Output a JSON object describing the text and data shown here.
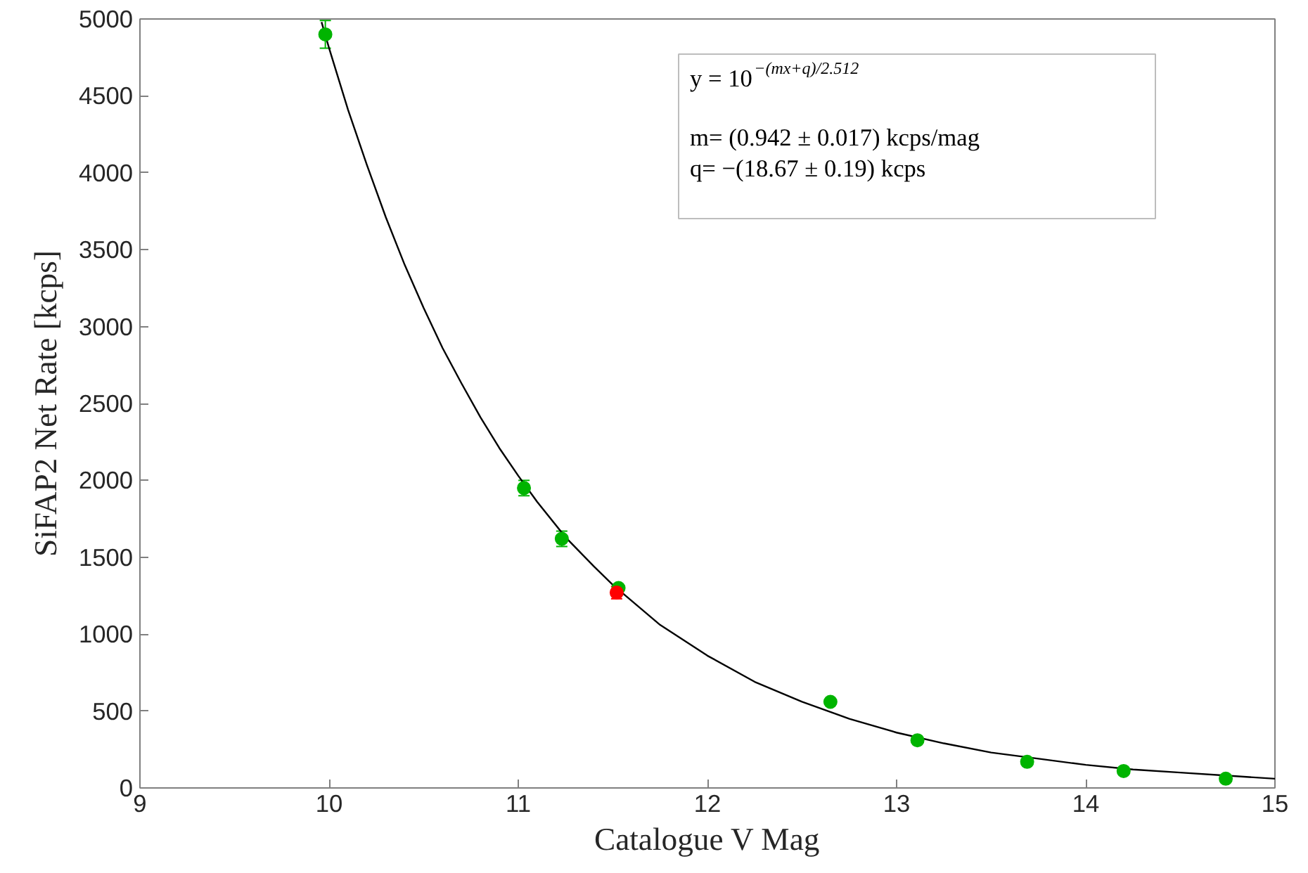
{
  "chart_data": {
    "type": "scatter",
    "xlabel": "Catalogue V Mag",
    "ylabel": "SiFAP2 Net Rate [kcps]",
    "xlim": [
      9,
      15
    ],
    "ylim": [
      0,
      5000
    ],
    "xticks": [
      9,
      10,
      11,
      12,
      13,
      14,
      15
    ],
    "yticks": [
      0,
      500,
      1000,
      1500,
      2000,
      2500,
      3000,
      3500,
      4000,
      4500,
      5000
    ],
    "grid": false,
    "series": [
      {
        "type": "line",
        "color": "#000000",
        "line_style": "solid",
        "x": [
          9.96,
          10,
          10.1,
          10.2,
          10.3,
          10.4,
          10.5,
          10.6,
          10.7,
          10.8,
          10.9,
          11,
          11.1,
          11.25,
          11.4,
          11.5,
          11.75,
          12,
          12.25,
          12.5,
          12.75,
          13,
          13.25,
          13.5,
          13.75,
          14,
          14.25,
          14.5,
          14.75,
          15
        ],
        "values": [
          4980,
          4810,
          4410,
          4050,
          3710,
          3400,
          3120,
          2860,
          2630,
          2410,
          2210,
          2030,
          1860,
          1630,
          1440,
          1320,
          1060,
          860,
          690,
          560,
          450,
          360,
          290,
          230,
          190,
          150,
          120,
          100,
          80,
          60
        ]
      },
      {
        "color": "#00b400",
        "marker": "circle",
        "x": [
          9.98,
          11.03,
          11.23,
          11.53,
          12.65,
          13.11,
          13.69,
          14.2,
          14.74
        ],
        "values": [
          4900,
          1950,
          1620,
          1300,
          560,
          310,
          170,
          110,
          60
        ],
        "errors": [
          90,
          50,
          50,
          null,
          null,
          null,
          null,
          null,
          null
        ]
      },
      {
        "color": "#ff0000",
        "marker": "circle",
        "x": [
          11.52
        ],
        "values": [
          1270
        ],
        "errors": [
          40
        ]
      }
    ],
    "annotations": [
      "y = 10$^{−(mx+q)/2.512}$",
      "m= (0.942 ± 0.017) kcps/mag",
      "q= −(18.67 ± 0.19) kcps"
    ]
  }
}
